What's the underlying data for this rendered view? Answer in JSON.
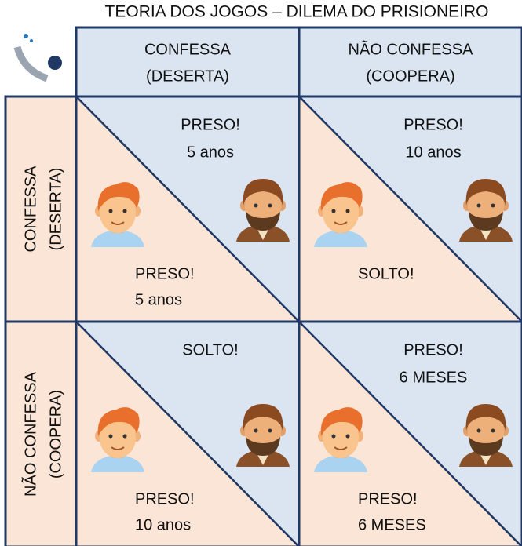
{
  "title": "TEORIA DOS JOGOS – DILEMA DO PRISIONEIRO",
  "columns": [
    [
      "CONFESSA",
      "(DESERTA)"
    ],
    [
      "NÃO CONFESSA",
      "(COOPERA)"
    ]
  ],
  "rows": [
    [
      "CONFESSA",
      "(DESERTA)"
    ],
    [
      "NÃO CONFESSA",
      "(COOPERA)"
    ]
  ],
  "cells": [
    {
      "top": [
        "PRESO!",
        "5 anos"
      ],
      "bottom": [
        "PRESO!",
        "5 anos"
      ]
    },
    {
      "top": [
        "PRESO!",
        "10 anos"
      ],
      "bottom": [
        "SOLTO!"
      ]
    },
    {
      "top": [
        "SOLTO!"
      ],
      "bottom": [
        "PRESO!",
        "10 anos"
      ]
    },
    {
      "top": [
        "PRESO!",
        "6 MESES"
      ],
      "bottom": [
        "PRESO!",
        "6 MESES"
      ]
    }
  ]
}
